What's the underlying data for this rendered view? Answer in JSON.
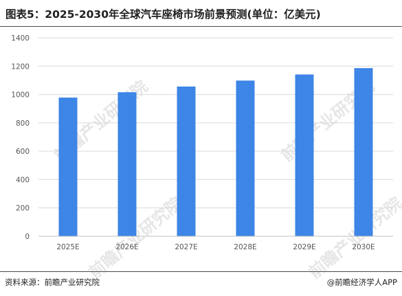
{
  "title": "图表5：2025-2030年全球汽车座椅市场前景预测(单位：亿美元)",
  "source": "资料来源：前瞻产业研究院",
  "credit": "@前瞻经济学人APP",
  "watermark": "前瞻产业研究院",
  "colors": {
    "bar": "#3d85e6",
    "axis": "#bfbfbf",
    "grid": "#d9d9d9"
  },
  "chart_data": {
    "type": "bar",
    "categories": [
      "2025E",
      "2026E",
      "2027E",
      "2028E",
      "2029E",
      "2030E"
    ],
    "values": [
      978,
      1016,
      1056,
      1098,
      1141,
      1186
    ],
    "ylim": [
      0,
      1400
    ],
    "yticks": [
      0,
      200,
      400,
      600,
      800,
      1000,
      1200,
      1400
    ],
    "grid": true,
    "xlabel": "",
    "ylabel": ""
  }
}
